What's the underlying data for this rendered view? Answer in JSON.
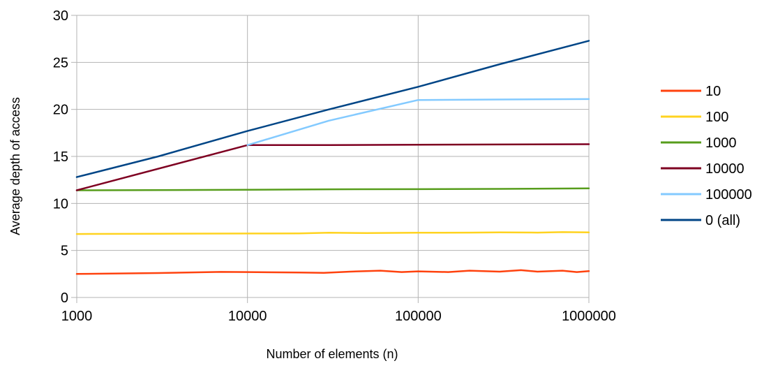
{
  "chart_data": {
    "type": "line",
    "title": "",
    "xlabel": "Number of elements (n)",
    "ylabel": "Average depth of access",
    "x_scale": "log",
    "xlim": [
      1000,
      1000000
    ],
    "ylim": [
      0,
      30
    ],
    "x_ticks": [
      "1000",
      "10000",
      "100000",
      "1000000"
    ],
    "y_ticks": [
      "0",
      "5",
      "10",
      "15",
      "20",
      "25",
      "30"
    ],
    "grid": true,
    "legend_position": "right",
    "series": [
      {
        "name": "10",
        "color": "#ff420e",
        "points": [
          [
            1000,
            2.5
          ],
          [
            3000,
            2.6
          ],
          [
            7000,
            2.72
          ],
          [
            10000,
            2.7
          ],
          [
            20000,
            2.65
          ],
          [
            28000,
            2.62
          ],
          [
            40000,
            2.75
          ],
          [
            60000,
            2.85
          ],
          [
            80000,
            2.7
          ],
          [
            100000,
            2.78
          ],
          [
            150000,
            2.7
          ],
          [
            200000,
            2.85
          ],
          [
            300000,
            2.75
          ],
          [
            400000,
            2.9
          ],
          [
            500000,
            2.75
          ],
          [
            700000,
            2.85
          ],
          [
            850000,
            2.7
          ],
          [
            1000000,
            2.8
          ]
        ]
      },
      {
        "name": "100",
        "color": "#ffd320",
        "points": [
          [
            1000,
            6.75
          ],
          [
            3000,
            6.78
          ],
          [
            10000,
            6.8
          ],
          [
            20000,
            6.82
          ],
          [
            30000,
            6.88
          ],
          [
            50000,
            6.85
          ],
          [
            100000,
            6.88
          ],
          [
            200000,
            6.9
          ],
          [
            300000,
            6.92
          ],
          [
            500000,
            6.9
          ],
          [
            700000,
            6.95
          ],
          [
            1000000,
            6.92
          ]
        ]
      },
      {
        "name": "1000",
        "color": "#579d1c",
        "points": [
          [
            1000,
            11.4
          ],
          [
            10000,
            11.45
          ],
          [
            30000,
            11.5
          ],
          [
            100000,
            11.52
          ],
          [
            300000,
            11.55
          ],
          [
            1000000,
            11.6
          ]
        ]
      },
      {
        "name": "10000",
        "color": "#7e0021",
        "points": [
          [
            1000,
            11.4
          ],
          [
            10000,
            16.2
          ],
          [
            30000,
            16.2
          ],
          [
            100000,
            16.25
          ],
          [
            300000,
            16.27
          ],
          [
            1000000,
            16.3
          ]
        ]
      },
      {
        "name": "100000",
        "color": "#83caff",
        "points": [
          [
            10000,
            16.2
          ],
          [
            30000,
            18.8
          ],
          [
            100000,
            21.0
          ],
          [
            300000,
            21.05
          ],
          [
            1000000,
            21.1
          ]
        ]
      },
      {
        "name": "0 (all)",
        "color": "#004586",
        "points": [
          [
            1000,
            12.8
          ],
          [
            3000,
            15.0
          ],
          [
            10000,
            17.7
          ],
          [
            30000,
            20.0
          ],
          [
            100000,
            22.4
          ],
          [
            300000,
            24.8
          ],
          [
            1000000,
            27.3
          ]
        ]
      }
    ]
  }
}
